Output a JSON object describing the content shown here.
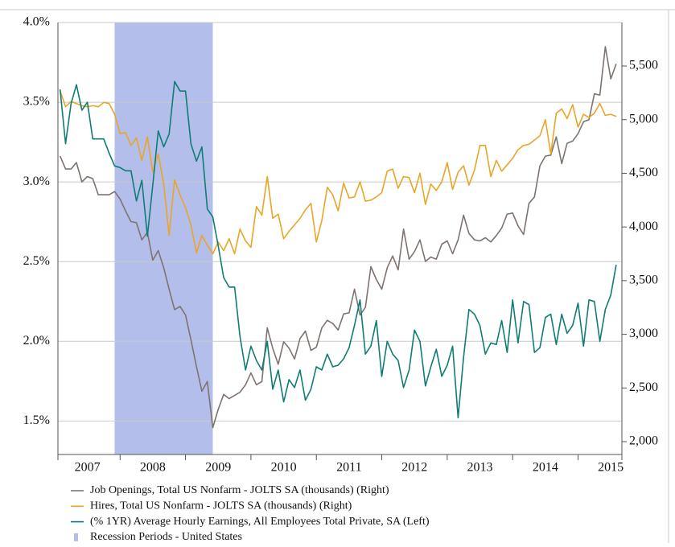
{
  "chart_data": {
    "type": "line",
    "x": [
      2007.083,
      2007.167,
      2007.25,
      2007.333,
      2007.417,
      2007.5,
      2007.583,
      2007.667,
      2007.75,
      2007.833,
      2007.917,
      2008,
      2008.083,
      2008.167,
      2008.25,
      2008.333,
      2008.417,
      2008.5,
      2008.583,
      2008.667,
      2008.75,
      2008.833,
      2008.917,
      2009,
      2009.083,
      2009.167,
      2009.25,
      2009.333,
      2009.417,
      2009.5,
      2009.583,
      2009.667,
      2009.75,
      2009.833,
      2009.917,
      2010,
      2010.083,
      2010.167,
      2010.25,
      2010.333,
      2010.417,
      2010.5,
      2010.583,
      2010.667,
      2010.75,
      2010.833,
      2010.917,
      2011,
      2011.083,
      2011.167,
      2011.25,
      2011.333,
      2011.417,
      2011.5,
      2011.583,
      2011.667,
      2011.75,
      2011.833,
      2011.917,
      2012,
      2012.083,
      2012.167,
      2012.25,
      2012.333,
      2012.417,
      2012.5,
      2012.583,
      2012.667,
      2012.75,
      2012.833,
      2012.917,
      2013,
      2013.083,
      2013.167,
      2013.25,
      2013.333,
      2013.417,
      2013.5,
      2013.583,
      2013.667,
      2013.75,
      2013.833,
      2013.917,
      2014,
      2014.083,
      2014.167,
      2014.25,
      2014.333,
      2014.417,
      2014.5,
      2014.583,
      2014.667,
      2014.75,
      2014.833,
      2014.917,
      2015,
      2015.083,
      2015.167,
      2015.25,
      2015.333,
      2015.417,
      2015.5,
      2015.583
    ],
    "series": [
      {
        "name": "Job Openings, Total US Nonfarm - JOLTS SA (thousands) (Right)",
        "color": "#7f7370",
        "axis": "y2",
        "values": [
          4660,
          4540,
          4540,
          4600,
          4420,
          4470,
          4450,
          4300,
          4300,
          4300,
          4330,
          4260,
          4150,
          4050,
          4040,
          3880,
          3950,
          3690,
          3780,
          3620,
          3420,
          3230,
          3260,
          3180,
          2950,
          2700,
          2470,
          2560,
          2130,
          2300,
          2440,
          2400,
          2430,
          2460,
          2530,
          2640,
          2530,
          2560,
          3060,
          2870,
          2720,
          2930,
          2870,
          2770,
          2960,
          3030,
          2850,
          2880,
          3060,
          3130,
          3100,
          3040,
          3190,
          3200,
          3420,
          3180,
          3250,
          3630,
          3510,
          3420,
          3620,
          3730,
          3600,
          3980,
          3700,
          3770,
          3880,
          3680,
          3720,
          3700,
          3840,
          3870,
          3750,
          3880,
          4110,
          3940,
          3880,
          3870,
          3900,
          3860,
          3920,
          3990,
          4120,
          4130,
          4010,
          3930,
          4220,
          4280,
          4570,
          4660,
          4670,
          4840,
          4590,
          4780,
          4800,
          4870,
          4980,
          5000,
          5240,
          5230,
          5680,
          5380,
          5520
        ]
      },
      {
        "name": "Hires, Total US Nonfarm - JOLTS SA (thousands) (Right)",
        "color": "#e8a628",
        "axis": "y2",
        "values": [
          5270,
          5120,
          5170,
          5150,
          5130,
          5120,
          5130,
          5120,
          5160,
          5150,
          5050,
          4870,
          4880,
          4760,
          4830,
          4620,
          4840,
          4510,
          4680,
          4400,
          3920,
          4440,
          4300,
          4180,
          4020,
          3760,
          3920,
          3830,
          3750,
          3860,
          3780,
          3890,
          3750,
          3980,
          3870,
          3810,
          4190,
          4110,
          4470,
          4080,
          4120,
          3890,
          3960,
          4020,
          4080,
          4160,
          4220,
          3860,
          4060,
          4370,
          4300,
          4150,
          4410,
          4270,
          4280,
          4420,
          4240,
          4250,
          4280,
          4320,
          4520,
          4540,
          4360,
          4470,
          4460,
          4320,
          4500,
          4210,
          4400,
          4340,
          4420,
          4600,
          4350,
          4510,
          4570,
          4390,
          4530,
          4760,
          4760,
          4470,
          4620,
          4520,
          4580,
          4640,
          4720,
          4760,
          4770,
          4810,
          4850,
          5000,
          4680,
          5060,
          5100,
          5010,
          5140,
          4930,
          5050,
          5020,
          5060,
          5150,
          5040,
          5050,
          5030
        ]
      },
      {
        "name": "(% 1YR) Average Hourly Earnings, All Employees Total Private, SA (Left)",
        "color": "#0f7d74",
        "values": [
          3.58,
          3.24,
          3.49,
          3.61,
          3.45,
          3.5,
          3.27,
          3.27,
          3.27,
          3.18,
          3.1,
          3.09,
          3.07,
          3.07,
          2.88,
          3.01,
          2.66,
          2.98,
          3.32,
          3.22,
          3.3,
          3.63,
          3.57,
          3.57,
          3.24,
          3.13,
          3.22,
          2.83,
          2.78,
          2.6,
          2.4,
          2.34,
          2.34,
          2.03,
          1.82,
          1.97,
          1.88,
          1.82,
          2.0,
          1.7,
          1.82,
          1.62,
          1.76,
          1.71,
          1.82,
          1.63,
          1.7,
          1.84,
          1.82,
          1.92,
          1.84,
          1.85,
          1.89,
          1.96,
          2.1,
          2.26,
          1.92,
          1.97,
          2.13,
          1.78,
          2.0,
          1.92,
          1.88,
          1.71,
          1.82,
          2.07,
          2.0,
          1.72,
          1.84,
          1.95,
          1.78,
          1.85,
          1.97,
          1.52,
          1.9,
          2.2,
          2.17,
          2.1,
          1.92,
          1.99,
          1.98,
          2.13,
          1.93,
          2.26,
          1.99,
          2.25,
          2.23,
          1.93,
          1.96,
          2.15,
          2.17,
          1.98,
          2.17,
          2.05,
          2.1,
          2.24,
          1.97,
          2.26,
          2.25,
          2.0,
          2.2,
          2.29,
          2.48
        ]
      }
    ],
    "shaded_periods": [
      {
        "name": "Recession Periods - United States",
        "color": "#b3bfea",
        "x": [
          2007.917,
          2009.417
        ]
      }
    ],
    "xlim": [
      2007.05,
      2015.67
    ],
    "xticks": [
      {
        "value": 2007.5,
        "label": "2007"
      },
      {
        "value": 2008.5,
        "label": "2008"
      },
      {
        "value": 2009.5,
        "label": "2009"
      },
      {
        "value": 2010.5,
        "label": "2010"
      },
      {
        "value": 2011.5,
        "label": "2011"
      },
      {
        "value": 2012.5,
        "label": "2012"
      },
      {
        "value": 2013.5,
        "label": "2013"
      },
      {
        "value": 2014.5,
        "label": "2014"
      },
      {
        "value": 2015.5,
        "label": "2015"
      }
    ],
    "ylim": [
      1.29,
      4.0
    ],
    "yticks": [
      {
        "value": 1.5,
        "label": "1.5%"
      },
      {
        "value": 2.0,
        "label": "2.0%"
      },
      {
        "value": 2.5,
        "label": "2.5%"
      },
      {
        "value": 3.0,
        "label": "3.0%"
      },
      {
        "value": 3.5,
        "label": "3.5%"
      },
      {
        "value": 4.0,
        "label": "4.0%"
      }
    ],
    "y2lim": [
      1880,
      5905
    ],
    "y2ticks": [
      {
        "value": 2000,
        "label": "2,000"
      },
      {
        "value": 2500,
        "label": "2,500"
      },
      {
        "value": 3000,
        "label": "3,000"
      },
      {
        "value": 3500,
        "label": "3,500"
      },
      {
        "value": 4000,
        "label": "4,000"
      },
      {
        "value": 4500,
        "label": "4,500"
      },
      {
        "value": 5000,
        "label": "5,000"
      },
      {
        "value": 5500,
        "label": "5,500"
      }
    ],
    "grid": true
  }
}
